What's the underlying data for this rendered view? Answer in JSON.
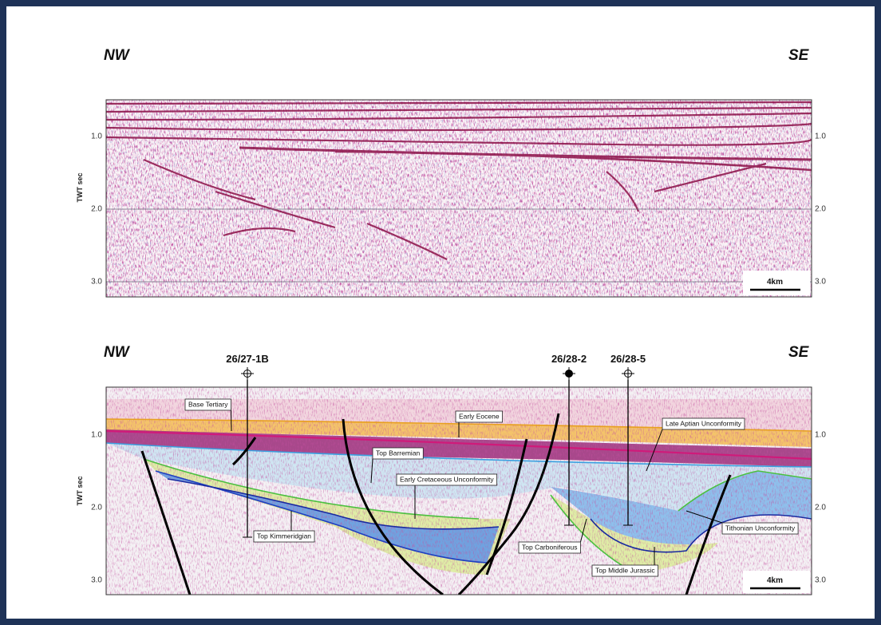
{
  "panels": [
    {
      "left": "NW",
      "right": "SE",
      "axis_label": "TWT sec",
      "ticks_left": [
        "1.0",
        "2.0",
        "3.0"
      ],
      "ticks_right": [
        "1.0",
        "2.0",
        "3.0"
      ],
      "scale": "4km"
    },
    {
      "left": "NW",
      "right": "SE",
      "axis_label": "TWT sec",
      "ticks_left": [
        "1.0",
        "2.0",
        "3.0"
      ],
      "ticks_right": [
        "1.0",
        "2.0",
        "3.0"
      ],
      "scale": "4km",
      "wells": [
        "26/27-1B",
        "26/28-2",
        "26/28-5"
      ],
      "horizons": [
        "Base Tertiary",
        "Early Eocene",
        "Top Barremian",
        "Early Cretaceous Unconformity",
        "Top Kimmeridgian",
        "Late Aptian Unconformity",
        "Tithonian Unconformity",
        "Top Carboniferous",
        "Top Middle Jurassic"
      ]
    }
  ]
}
